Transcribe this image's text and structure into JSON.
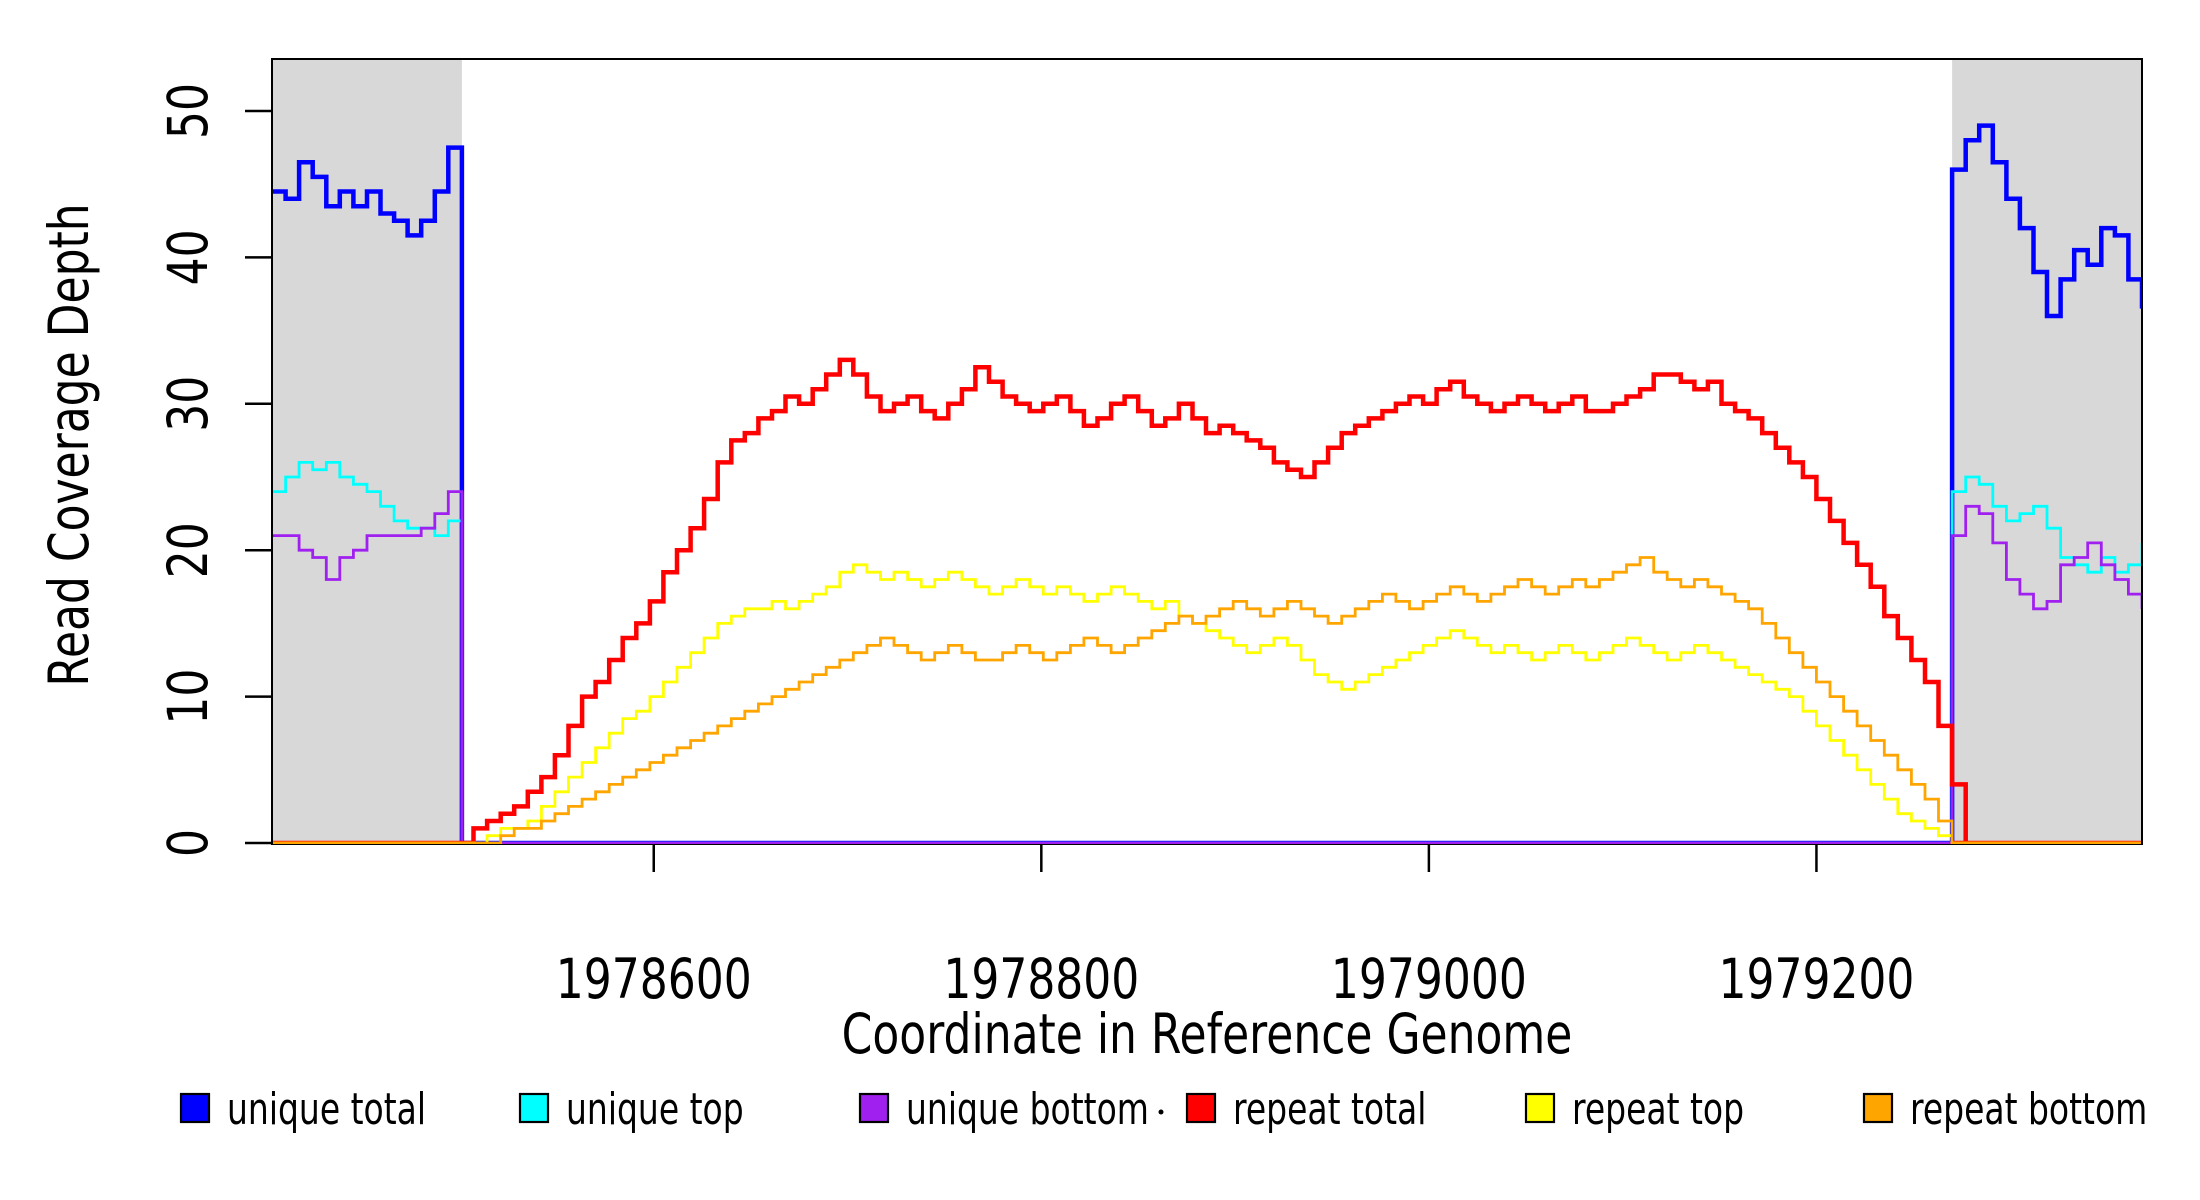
{
  "figure": {
    "x_axis_title": "Coordinate in Reference Genome",
    "y_axis_title": "Read Coverage Depth"
  },
  "chart_data": {
    "type": "line",
    "subtype": "step",
    "title": "",
    "xlabel": "Coordinate in Reference Genome",
    "ylabel": "Read Coverage Depth",
    "xlim": [
      1978403,
      1979368
    ],
    "ylim": [
      0,
      53.5
    ],
    "x_ticks": [
      1978600,
      1978800,
      1979000,
      1979200
    ],
    "y_ticks": [
      0,
      10,
      20,
      30,
      40,
      50
    ],
    "grid": false,
    "legend_position": "bottom",
    "background_regions": [
      {
        "name": "unique-region-left",
        "x_start": 1978403,
        "x_end": 1978501,
        "color": "#d8d8d8"
      },
      {
        "name": "unique-region-right",
        "x_start": 1979270,
        "x_end": 1979368,
        "color": "#d8d8d8"
      }
    ],
    "legend": [
      {
        "label": "unique total",
        "color": "#0000FF"
      },
      {
        "label": "unique top",
        "color": "#00FFFF"
      },
      {
        "label": "unique bottom",
        "color": "#A020F0"
      },
      {
        "label": "repeat total",
        "color": "#FF0000"
      },
      {
        "label": "repeat top",
        "color": "#FFFF00"
      },
      {
        "label": "repeat bottom",
        "color": "#FFA500"
      }
    ],
    "series": [
      {
        "name": "unique total",
        "color": "#0000FF",
        "line_width": 4.5,
        "segments": [
          {
            "start": 1978403,
            "step": 7,
            "values": [
              44.5,
              44,
              46.5,
              45.5,
              43.5,
              44.5,
              43.5,
              44.5,
              43,
              42.5,
              41.5,
              42.5,
              44.5,
              47.5,
              46.5
            ]
          },
          {
            "start": 1978501,
            "step": 769,
            "values": [
              0,
              0
            ]
          },
          {
            "start": 1979270,
            "step": 7,
            "values": [
              46,
              48,
              49,
              46.5,
              44,
              42,
              39,
              36,
              38.5,
              40.5,
              39.5,
              42,
              41.5,
              38.5,
              36.5
            ]
          }
        ]
      },
      {
        "name": "unique top",
        "color": "#00FFFF",
        "line_width": 2.8,
        "segments": [
          {
            "start": 1978403,
            "step": 7,
            "values": [
              24,
              25,
              26,
              25.5,
              26,
              25,
              24.5,
              24,
              23,
              22,
              21.5,
              21.5,
              21,
              22,
              24
            ]
          },
          {
            "start": 1978501,
            "step": 769,
            "values": [
              0,
              0
            ]
          },
          {
            "start": 1979270,
            "step": 7,
            "values": [
              24,
              25,
              24.5,
              23,
              22,
              22.5,
              23,
              21.5,
              19.5,
              19,
              18.5,
              19.5,
              18.5,
              19,
              20.5
            ]
          }
        ]
      },
      {
        "name": "unique bottom",
        "color": "#A020F0",
        "line_width": 2.8,
        "segments": [
          {
            "start": 1978403,
            "step": 7,
            "values": [
              21,
              21,
              20,
              19.5,
              18,
              19.5,
              20,
              21,
              21,
              21,
              21,
              21.5,
              22.5,
              24,
              23.5
            ]
          },
          {
            "start": 1978501,
            "step": 769,
            "values": [
              0,
              0
            ]
          },
          {
            "start": 1979270,
            "step": 7,
            "values": [
              21,
              23,
              22.5,
              20.5,
              18,
              17,
              16,
              16.5,
              19,
              19.5,
              20.5,
              19,
              18,
              17,
              16
            ]
          }
        ]
      },
      {
        "name": "repeat total",
        "color": "#FF0000",
        "line_width": 4.5,
        "segments": [
          {
            "start": 1978403,
            "step": 97,
            "values": [
              0,
              0
            ]
          },
          {
            "start": 1978500,
            "step": 7,
            "values": [
              0,
              1,
              1.5,
              2,
              2.5,
              3.5,
              4.5,
              6,
              8,
              10,
              11,
              12.5,
              14,
              15,
              16.5,
              18.5,
              20,
              21.5,
              23.5,
              26,
              27.5,
              28,
              29,
              29.5,
              30.5,
              30,
              31,
              32,
              33,
              32,
              30.5,
              29.5,
              30,
              30.5,
              29.5,
              29,
              30,
              31,
              32.5,
              31.5,
              30.5,
              30,
              29.5,
              30,
              30.5,
              29.5,
              28.5,
              29,
              30,
              30.5,
              29.5,
              28.5,
              29,
              30,
              29,
              28,
              28.5,
              28,
              27.5,
              27,
              26,
              25.5,
              25,
              26,
              27,
              28,
              28.5,
              29,
              29.5,
              30,
              30.5,
              30,
              31,
              31.5,
              30.5,
              30,
              29.5,
              30,
              30.5,
              30,
              29.5,
              30,
              30.5,
              29.5,
              29.5,
              30,
              30.5,
              31,
              32,
              32,
              31.5,
              31,
              31.5,
              30,
              29.5,
              29,
              28,
              27,
              26,
              25,
              23.5,
              22,
              20.5,
              19,
              17.5,
              15.5,
              14,
              12.5,
              11,
              8,
              4,
              0
            ]
          },
          {
            "start": 1979270,
            "step": 98,
            "values": [
              0,
              0
            ]
          }
        ]
      },
      {
        "name": "repeat top",
        "color": "#FFFF00",
        "line_width": 2.8,
        "segments": [
          {
            "start": 1978403,
            "step": 97,
            "values": [
              0,
              0
            ]
          },
          {
            "start": 1978500,
            "step": 7,
            "values": [
              0,
              0,
              0.5,
              1,
              1,
              1.5,
              2.5,
              3.5,
              4.5,
              5.5,
              6.5,
              7.5,
              8.5,
              9,
              10,
              11,
              12,
              13,
              14,
              15,
              15.5,
              16,
              16,
              16.5,
              16,
              16.5,
              17,
              17.5,
              18.5,
              19,
              18.5,
              18,
              18.5,
              18,
              17.5,
              18,
              18.5,
              18,
              17.5,
              17,
              17.5,
              18,
              17.5,
              17,
              17.5,
              17,
              16.5,
              17,
              17.5,
              17,
              16.5,
              16,
              16.5,
              15.5,
              15,
              14.5,
              14,
              13.5,
              13,
              13.5,
              14,
              13.5,
              12.5,
              11.5,
              11,
              10.5,
              11,
              11.5,
              12,
              12.5,
              13,
              13.5,
              14,
              14.5,
              14,
              13.5,
              13,
              13.5,
              13,
              12.5,
              13,
              13.5,
              13,
              12.5,
              13,
              13.5,
              14,
              13.5,
              13,
              12.5,
              13,
              13.5,
              13,
              12.5,
              12,
              11.5,
              11,
              10.5,
              10,
              9,
              8,
              7,
              6,
              5,
              4,
              3,
              2,
              1.5,
              1,
              0.5,
              0
            ]
          },
          {
            "start": 1979270,
            "step": 98,
            "values": [
              0,
              0
            ]
          }
        ]
      },
      {
        "name": "repeat bottom",
        "color": "#FFA500",
        "line_width": 2.8,
        "segments": [
          {
            "start": 1978403,
            "step": 97,
            "values": [
              0,
              0
            ]
          },
          {
            "start": 1978500,
            "step": 7,
            "values": [
              0,
              0,
              0,
              0.5,
              1,
              1,
              1.5,
              2,
              2.5,
              3,
              3.5,
              4,
              4.5,
              5,
              5.5,
              6,
              6.5,
              7,
              7.5,
              8,
              8.5,
              9,
              9.5,
              10,
              10.5,
              11,
              11.5,
              12,
              12.5,
              13,
              13.5,
              14,
              13.5,
              13,
              12.5,
              13,
              13.5,
              13,
              12.5,
              12.5,
              13,
              13.5,
              13,
              12.5,
              13,
              13.5,
              14,
              13.5,
              13,
              13.5,
              14,
              14.5,
              15,
              15.5,
              15,
              15.5,
              16,
              16.5,
              16,
              15.5,
              16,
              16.5,
              16,
              15.5,
              15,
              15.5,
              16,
              16.5,
              17,
              16.5,
              16,
              16.5,
              17,
              17.5,
              17,
              16.5,
              17,
              17.5,
              18,
              17.5,
              17,
              17.5,
              18,
              17.5,
              18,
              18.5,
              19,
              19.5,
              18.5,
              18,
              17.5,
              18,
              17.5,
              17,
              16.5,
              16,
              15,
              14,
              13,
              12,
              11,
              10,
              9,
              8,
              7,
              6,
              5,
              4,
              3,
              1.5,
              0
            ]
          },
          {
            "start": 1979270,
            "step": 98,
            "values": [
              0,
              0
            ]
          }
        ]
      }
    ],
    "legend_stray_dot": "."
  }
}
